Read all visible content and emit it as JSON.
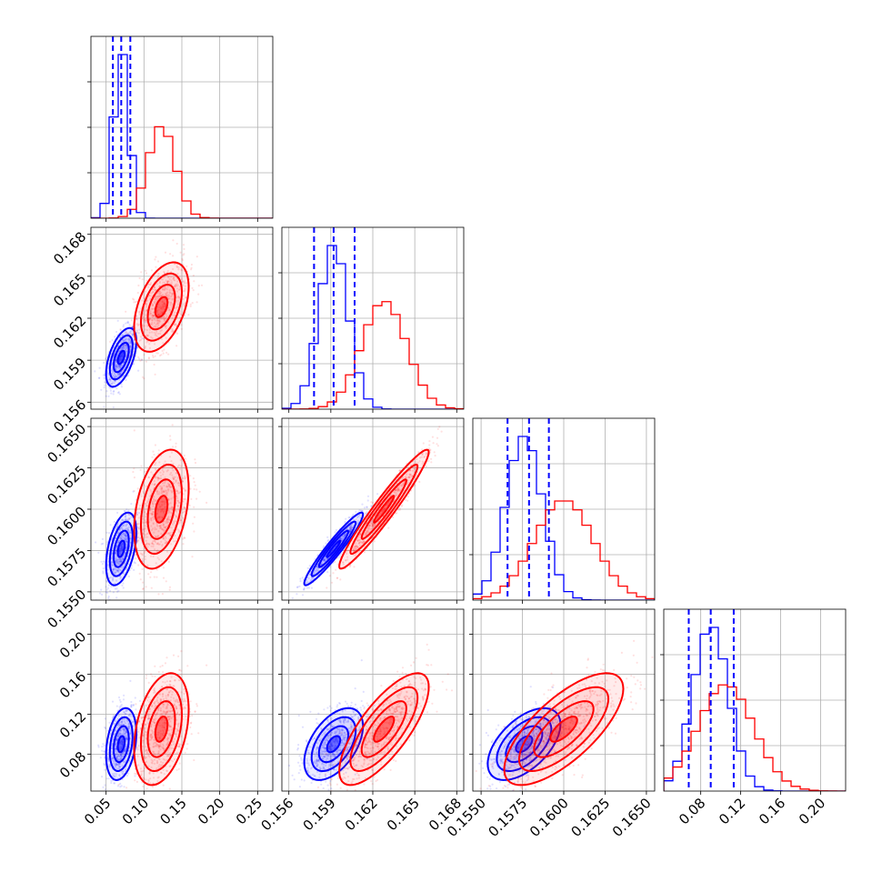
{
  "colors": {
    "series_a": "#0000ff",
    "series_b": "#ff0000",
    "grid": "#b0b0b0",
    "frame": "#000000"
  },
  "chart_data": {
    "type": "corner-plot",
    "grid": true,
    "legend": "none",
    "parameters": [
      {
        "range": [
          0.03,
          0.27
        ],
        "ticks": [
          0.05,
          0.1,
          0.15,
          0.2,
          0.25
        ],
        "tick_labels": [
          "0.05",
          "0.10",
          "0.15",
          "0.20",
          "0.25"
        ]
      },
      {
        "range": [
          0.1555,
          0.1685
        ],
        "ticks": [
          0.156,
          0.159,
          0.162,
          0.165,
          0.168
        ],
        "tick_labels": [
          "0.156",
          "0.159",
          "0.162",
          "0.165",
          "0.168"
        ]
      },
      {
        "range": [
          0.1545,
          0.1655
        ],
        "ticks": [
          0.155,
          0.1575,
          0.16,
          0.1625,
          0.165
        ],
        "tick_labels": [
          "0.1550",
          "0.1575",
          "0.1600",
          "0.1625",
          "0.1650"
        ]
      },
      {
        "range": [
          0.043,
          0.225
        ],
        "ticks": [
          0.08,
          0.12,
          0.16,
          0.2
        ],
        "tick_labels": [
          "0.08",
          "0.12",
          "0.16",
          "0.20"
        ]
      }
    ],
    "series": [
      {
        "color": "blue",
        "mean": [
          0.07,
          0.1592,
          0.1576,
          0.09
        ],
        "sd": [
          0.01,
          0.00105,
          0.0011,
          0.018
        ],
        "quantiles": [
          [
            0.059,
            0.07,
            0.082
          ],
          [
            0.1578,
            0.1592,
            0.1607
          ],
          [
            0.1566,
            0.1579,
            0.1591
          ],
          [
            0.068,
            0.09,
            0.113
          ]
        ],
        "correlations": {
          "1-0": 0.55,
          "2-0": 0.45,
          "3-0": 0.3,
          "2-1": 0.95,
          "3-1": 0.5,
          "3-2": 0.55
        }
      },
      {
        "color": "red",
        "mean": [
          0.123,
          0.1628,
          0.16,
          0.105
        ],
        "sd": [
          0.018,
          0.0016,
          0.0018,
          0.028
        ],
        "correlations": {
          "1-0": 0.45,
          "2-0": 0.35,
          "3-0": 0.35,
          "2-1": 0.96,
          "3-1": 0.75,
          "3-2": 0.72
        }
      }
    ]
  }
}
